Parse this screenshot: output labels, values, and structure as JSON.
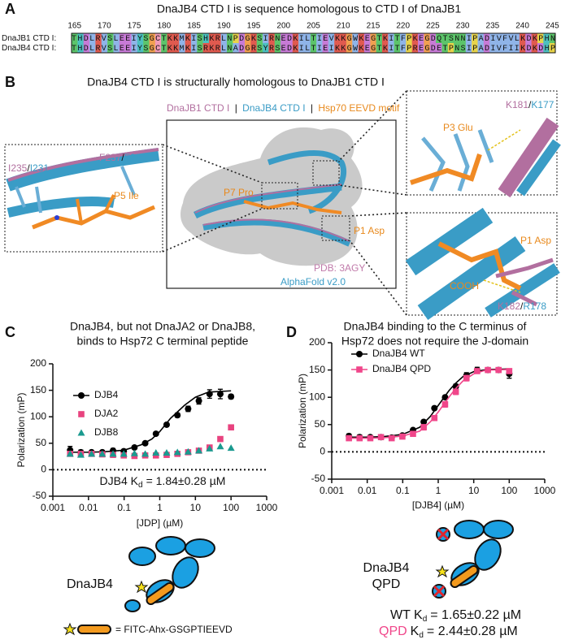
{
  "panel_labels": [
    "A",
    "B",
    "C",
    "D"
  ],
  "panel_a": {
    "title": "DnaJB4 CTD I is sequence homologous to CTD I of DnaJB1",
    "residue_numbers": [
      165,
      170,
      175,
      180,
      185,
      190,
      195,
      200,
      205,
      210,
      215,
      220,
      225,
      230,
      235,
      240,
      245
    ],
    "sequences": [
      {
        "name": "DnaJB1 CTD I:",
        "seq": "THDLRVSLEEIYSGCTKKMKISHKRLNPDGKSIRNEDKILTIEVKKGWKEGTKITFPKEGDQTSNNIPADIVFVLKDKPHN"
      },
      {
        "name": "DnaJB4 CTD I:",
        "seq": "THDLRVSLEEIYSGCTKKMKISRKRLNADGRSYRSEDKILTIEIKKGWKEGTKITFPREGDETPNSIPADIVFIIKDKDHP"
      }
    ]
  },
  "panel_b": {
    "title": "DnaJB4 CTD I is structurally homologous to DnaJB1 CTD I",
    "legend": [
      "DnaJB1 CTD I",
      "|",
      "DnaJB4 CTD I",
      "|",
      "Hsp70 EEVD motif"
    ],
    "labels": {
      "p7": "P7 Pro",
      "p1": "P1 Asp",
      "p5": "P5 Ile",
      "p3": "P3 Glu",
      "p1_inset": "P1 Asp",
      "cooh": "COOH",
      "pdb": "PDB: 3AGY",
      "alphafold": "AlphaFold v2.0",
      "i235": [
        "I235",
        "/",
        "I231"
      ],
      "f237": [
        "F237",
        "/",
        "F233"
      ],
      "k181": [
        "K181",
        "/",
        "K177"
      ],
      "k182": [
        "K182",
        "/",
        "R178"
      ]
    }
  },
  "chart_data": [
    {
      "type": "scatter",
      "title": [
        "DnaJB4, but not DnaJA2 or DnaJB8,",
        "binds to Hsp72 C terminal peptide"
      ],
      "xlabel": "[JDP] (µM)",
      "ylabel": "Polarization (mP)",
      "xscale": "log",
      "xlim": [
        0.001,
        1000
      ],
      "xticks": [
        0.001,
        0.01,
        0.1,
        1,
        10,
        100,
        1000
      ],
      "ylim": [
        -50,
        200
      ],
      "yticks": [
        -50,
        0,
        50,
        100,
        150,
        200
      ],
      "zero_line": 0,
      "legend": "upper left",
      "x": [
        0.00305,
        0.0061,
        0.0122,
        0.0244,
        0.0488,
        0.0977,
        0.195,
        0.39,
        0.78,
        1.56,
        3.13,
        6.25,
        12.5,
        25,
        50,
        100
      ],
      "series": [
        {
          "name": "DJB4",
          "color": "#000000",
          "marker": "circle",
          "values": [
            37,
            33,
            33,
            33,
            36,
            35,
            42,
            50,
            68,
            85,
            103,
            115,
            130,
            143,
            143,
            138
          ],
          "errors": [
            7,
            4,
            3,
            3,
            4,
            3,
            3,
            3,
            3,
            3,
            4,
            5,
            6,
            8,
            9,
            4
          ],
          "fit": {
            "x": [
              0.003,
              0.01,
              0.03,
              0.1,
              0.3,
              0.6,
              1,
              2,
              3,
              5,
              10,
              20,
              30,
              100
            ],
            "values": [
              33,
              33,
              34,
              37,
              47,
              58,
              72,
              97,
              108,
              122,
              137,
              145,
              147,
              149
            ]
          }
        },
        {
          "name": "DJA2",
          "color": "#e8437f",
          "marker": "square",
          "values": [
            30,
            30,
            30,
            29,
            28,
            27,
            26,
            27,
            27,
            28,
            30,
            33,
            36,
            42,
            58,
            80
          ]
        },
        {
          "name": "DJB8",
          "color": "#1a9a8f",
          "marker": "triangle",
          "values": [
            30,
            28,
            30,
            30,
            30,
            30,
            31,
            30,
            32,
            32,
            33,
            34,
            36,
            40,
            44,
            41
          ]
        }
      ],
      "annotation": [
        "DJB4 K",
        "d",
        "= 1.84±0.28 µM"
      ]
    },
    {
      "type": "scatter",
      "title": [
        "DnaJB4 binding to the C terminus of",
        "Hsp72 does not require the J-domain"
      ],
      "xlabel": "[DJB4] (µM)",
      "ylabel": "Polarization (mP)",
      "xscale": "log",
      "xlim": [
        0.001,
        1000
      ],
      "xticks": [
        0.001,
        0.01,
        0.1,
        1,
        10,
        100,
        1000
      ],
      "ylim": [
        -50,
        200
      ],
      "yticks": [
        -50,
        0,
        50,
        100,
        150,
        200
      ],
      "zero_line": 0,
      "legend": "upper left",
      "x": [
        0.00305,
        0.0061,
        0.0122,
        0.0244,
        0.0488,
        0.0977,
        0.195,
        0.39,
        0.78,
        1.56,
        3.13,
        6.25,
        12.5,
        25,
        50,
        100
      ],
      "series": [
        {
          "name": "DnaJB4 WT",
          "color": "#000000",
          "marker": "circle",
          "values": [
            29,
            27,
            27,
            27,
            26,
            30,
            40,
            55,
            80,
            100,
            120,
            140,
            150,
            150,
            150,
            143
          ],
          "errors": [
            4,
            4,
            3,
            3,
            3,
            3,
            3,
            3,
            3,
            3,
            4,
            5,
            5,
            4,
            4,
            8
          ],
          "fit": {
            "x": [
              0.003,
              0.01,
              0.03,
              0.1,
              0.3,
              0.6,
              1,
              2,
              3,
              5,
              10,
              20,
              30,
              100
            ],
            "values": [
              27,
              27,
              28,
              32,
              45,
              65,
              85,
              112,
              125,
              138,
              147,
              150,
              151,
              152
            ]
          }
        },
        {
          "name": "DnaJB4 QPD",
          "color": "#f0468a",
          "marker": "square",
          "values": [
            25,
            25,
            25,
            27,
            25,
            28,
            33,
            45,
            62,
            87,
            110,
            135,
            148,
            150,
            150,
            148
          ],
          "errors": [
            3,
            3,
            3,
            4,
            3,
            3,
            4,
            5,
            4,
            5,
            5,
            5,
            3,
            3,
            3,
            3
          ],
          "fit": {
            "x": [
              0.003,
              0.01,
              0.03,
              0.1,
              0.3,
              0.6,
              1,
              2,
              3,
              5,
              10,
              20,
              30,
              100
            ],
            "values": [
              25,
              25,
              26,
              29,
              38,
              55,
              73,
              100,
              115,
              130,
              143,
              149,
              150,
              151
            ]
          }
        }
      ]
    }
  ],
  "cartoons": {
    "dnajb4_label": "DnaJB4",
    "peptide_label": "= FITC-Ahx-GSGPTIEEVD",
    "qpd_label": [
      "DnaJB4",
      "QPD"
    ],
    "kd_wt": [
      "WT K",
      "d",
      "= 1.65±0.22 µM"
    ],
    "kd_qpd": [
      "QPD",
      "K",
      "d",
      "= 2.44±0.28 µM"
    ]
  }
}
